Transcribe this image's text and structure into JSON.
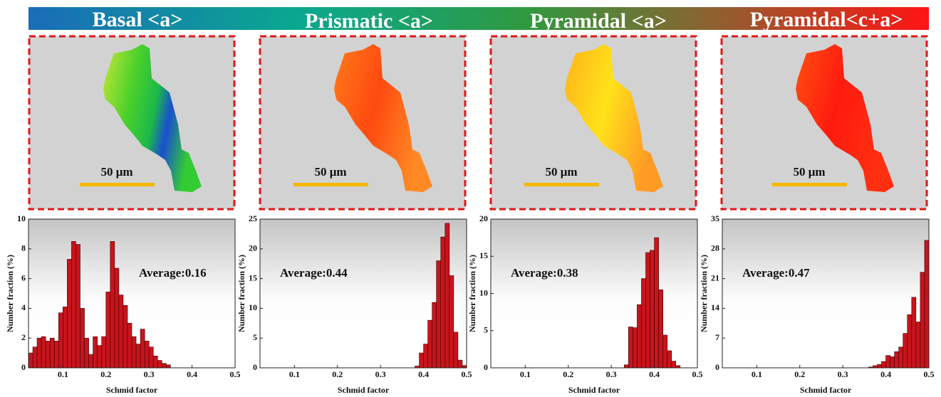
{
  "header": {
    "titles": [
      "Basal <a>",
      "Prismatic <a>",
      "Pyramidal <a>",
      "Pyramidal<c+a>"
    ]
  },
  "maps": [
    {
      "scale_label": "50 μm"
    },
    {
      "scale_label": "50 μm"
    },
    {
      "scale_label": "50 μm"
    },
    {
      "scale_label": "50 μm"
    }
  ],
  "chart_data": [
    {
      "type": "histogram",
      "xlabel": "Schmid factor",
      "ylabel": "Number fraction (%)",
      "annotation": "Average:0.16",
      "color": "#c8141c",
      "bins": [
        0.02,
        0.03,
        0.04,
        0.05,
        0.06,
        0.07,
        0.08,
        0.09,
        0.1,
        0.11,
        0.12,
        0.13,
        0.14,
        0.15,
        0.16,
        0.17,
        0.18,
        0.19,
        0.2,
        0.21,
        0.22,
        0.23,
        0.24,
        0.25,
        0.26,
        0.27,
        0.28,
        0.29,
        0.3,
        0.31,
        0.32,
        0.33,
        0.34,
        0.35
      ],
      "values": [
        1.0,
        1.4,
        2.0,
        2.1,
        1.8,
        2.0,
        1.8,
        3.7,
        4.1,
        7.3,
        8.5,
        8.3,
        4.0,
        2.0,
        0.9,
        2.1,
        1.5,
        2.1,
        5.1,
        8.5,
        6.7,
        4.9,
        4.2,
        3.0,
        2.1,
        1.6,
        2.6,
        1.8,
        1.4,
        0.8,
        0.5,
        0.3,
        0.2
      ],
      "xlim": [
        0.02,
        0.5
      ],
      "ylim": [
        0,
        10
      ],
      "xticks": [
        0.1,
        0.2,
        0.3,
        0.4,
        0.5
      ],
      "yticks": [
        0,
        2,
        4,
        6,
        8,
        10
      ]
    },
    {
      "type": "histogram",
      "xlabel": "Schmid factor",
      "ylabel": "Number fraction (%)",
      "annotation": "Average:0.44",
      "color": "#c8141c",
      "bins": [
        0.38,
        0.39,
        0.4,
        0.41,
        0.42,
        0.43,
        0.44,
        0.45,
        0.46,
        0.47,
        0.48,
        0.49,
        0.5
      ],
      "values": [
        0.3,
        2.5,
        4.0,
        8.0,
        11.0,
        18.0,
        22.0,
        24.3,
        15.5,
        6.0,
        1.3,
        0.4
      ],
      "xlim": [
        0.02,
        0.5
      ],
      "ylim": [
        0,
        25
      ],
      "xticks": [
        0.1,
        0.2,
        0.3,
        0.4,
        0.5
      ],
      "yticks": [
        0,
        5,
        10,
        15,
        20,
        25
      ]
    },
    {
      "type": "histogram",
      "xlabel": "Schmid factor",
      "ylabel": "Number fraction (%)",
      "annotation": "Average:0.38",
      "color": "#c8141c",
      "bins": [
        0.33,
        0.34,
        0.35,
        0.36,
        0.37,
        0.38,
        0.39,
        0.4,
        0.41,
        0.42,
        0.43,
        0.44,
        0.45,
        0.46
      ],
      "values": [
        0.4,
        5.5,
        5.4,
        8.5,
        12.0,
        15.5,
        15.8,
        17.5,
        10.5,
        4.4,
        2.3,
        0.9,
        0.3
      ],
      "xlim": [
        0.02,
        0.5
      ],
      "ylim": [
        0,
        20
      ],
      "xticks": [
        0.1,
        0.2,
        0.3,
        0.4,
        0.5
      ],
      "yticks": [
        0,
        5,
        10,
        15,
        20
      ]
    },
    {
      "type": "histogram",
      "xlabel": "Schmid factor",
      "ylabel": "Number fraction (%)",
      "annotation": "Average:0.47",
      "color": "#c8141c",
      "bins": [
        0.36,
        0.37,
        0.38,
        0.39,
        0.4,
        0.41,
        0.42,
        0.43,
        0.44,
        0.45,
        0.46,
        0.47,
        0.48,
        0.49,
        0.5
      ],
      "values": [
        0.2,
        0.5,
        0.8,
        1.5,
        2.9,
        2.6,
        3.8,
        4.9,
        8.1,
        12.5,
        16.6,
        10.8,
        22.5,
        30.0
      ],
      "xlim": [
        0.02,
        0.5
      ],
      "ylim": [
        0,
        35
      ],
      "xticks": [
        0.1,
        0.2,
        0.3,
        0.4,
        0.5
      ],
      "yticks": [
        0,
        7,
        14,
        21,
        28,
        35
      ]
    }
  ]
}
